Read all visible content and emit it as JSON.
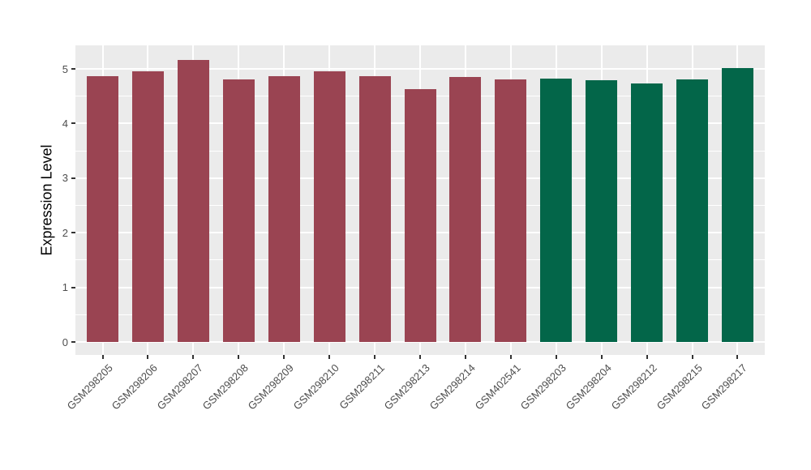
{
  "chart_data": {
    "type": "bar",
    "title": "",
    "xlabel": "",
    "ylabel": "Expression Level",
    "ylim": [
      0,
      5.43
    ],
    "y_major_ticks": [
      0,
      1,
      2,
      3,
      4,
      5
    ],
    "y_minor_ticks": [
      0.5,
      1.5,
      2.5,
      3.5,
      4.5
    ],
    "grid": "major-and-minor, white on gray panel",
    "legend_position": "none",
    "categories": [
      "GSM298205",
      "GSM298206",
      "GSM298207",
      "GSM298208",
      "GSM298209",
      "GSM298210",
      "GSM298211",
      "GSM298213",
      "GSM298214",
      "GSM402541",
      "GSM298203",
      "GSM298204",
      "GSM298212",
      "GSM298215",
      "GSM298217"
    ],
    "values": [
      4.86,
      4.96,
      5.16,
      4.8,
      4.86,
      4.95,
      4.87,
      4.63,
      4.85,
      4.8,
      4.82,
      4.79,
      4.74,
      4.81,
      5.01
    ],
    "bar_groups": [
      "A",
      "A",
      "A",
      "A",
      "A",
      "A",
      "A",
      "A",
      "A",
      "A",
      "B",
      "B",
      "B",
      "B",
      "B"
    ],
    "group_colors": {
      "A": "#9A4452",
      "B": "#036649"
    },
    "panel_background": "#EBEBEB",
    "gridline_color": "#FFFFFF",
    "axis_text_color": "#4D4D4D",
    "axis_title_color": "#000000"
  }
}
